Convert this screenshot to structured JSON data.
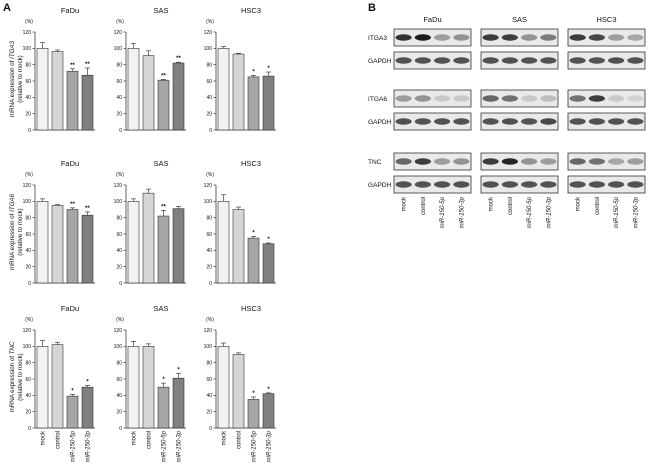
{
  "figure": {
    "panel_a_letter": "A",
    "panel_b_letter": "B",
    "percent_label": "(%)"
  },
  "chart_data": [
    {
      "type": "bar",
      "title": "FaDu",
      "ylabel_line1_prefix": "mRNA expression of ",
      "ylabel_gene": "ITGA3",
      "ylabel_line2": "(relative to mock)",
      "categories": [
        "mock",
        "control",
        "miR-150-5p",
        "miR-150-3p"
      ],
      "values": [
        100,
        96,
        72,
        67
      ],
      "errors": [
        7,
        2,
        3,
        9
      ],
      "significance": [
        "",
        "",
        "**",
        "**"
      ],
      "yticks": [
        0,
        20,
        40,
        60,
        80,
        100,
        120
      ],
      "ylim": [
        0,
        120
      ],
      "colors": [
        "#f2f2f2",
        "#d6d6d6",
        "#a6a6a6",
        "#808080"
      ]
    },
    {
      "type": "bar",
      "title": "SAS",
      "categories": [
        "mock",
        "control",
        "miR-150-5p",
        "miR-150-3p"
      ],
      "values": [
        100,
        91,
        61,
        82
      ],
      "errors": [
        6,
        6,
        1,
        1
      ],
      "significance": [
        "",
        "",
        "**",
        "**"
      ],
      "yticks": [
        0,
        20,
        40,
        60,
        80,
        100,
        120
      ],
      "ylim": [
        0,
        120
      ],
      "colors": [
        "#f2f2f2",
        "#d6d6d6",
        "#a6a6a6",
        "#808080"
      ]
    },
    {
      "type": "bar",
      "title": "HSC3",
      "categories": [
        "mock",
        "control",
        "miR-150-5p",
        "miR-150-3p"
      ],
      "values": [
        100,
        93,
        65,
        66
      ],
      "errors": [
        2,
        1,
        2,
        5
      ],
      "significance": [
        "",
        "",
        "*",
        "*"
      ],
      "yticks": [
        0,
        20,
        40,
        60,
        80,
        100,
        120
      ],
      "ylim": [
        0,
        120
      ],
      "colors": [
        "#f2f2f2",
        "#d6d6d6",
        "#a6a6a6",
        "#808080"
      ]
    },
    {
      "type": "bar",
      "title": "FaDu",
      "ylabel_line1_prefix": "mRNA expression of ",
      "ylabel_gene": "ITGA6",
      "ylabel_line2": "(relative to mock)",
      "categories": [
        "mock",
        "control",
        "miR-150-5p",
        "miR-150-3p"
      ],
      "values": [
        100,
        95,
        90,
        83
      ],
      "errors": [
        3,
        1,
        2,
        4
      ],
      "significance": [
        "",
        "",
        "**",
        "**"
      ],
      "yticks": [
        0,
        20,
        40,
        60,
        80,
        100,
        120
      ],
      "ylim": [
        0,
        120
      ],
      "colors": [
        "#f2f2f2",
        "#d6d6d6",
        "#a6a6a6",
        "#808080"
      ]
    },
    {
      "type": "bar",
      "title": "SAS",
      "categories": [
        "mock",
        "control",
        "miR-150-5p",
        "miR-150-3p"
      ],
      "values": [
        100,
        110,
        82,
        91
      ],
      "errors": [
        3,
        5,
        7,
        3
      ],
      "significance": [
        "",
        "",
        "**",
        ""
      ],
      "yticks": [
        0,
        20,
        40,
        60,
        80,
        100,
        120
      ],
      "ylim": [
        0,
        120
      ],
      "colors": [
        "#f2f2f2",
        "#d6d6d6",
        "#a6a6a6",
        "#808080"
      ]
    },
    {
      "type": "bar",
      "title": "HSC3",
      "categories": [
        "mock",
        "control",
        "miR-150-5p",
        "miR-150-3p"
      ],
      "values": [
        100,
        90,
        55,
        48
      ],
      "errors": [
        8,
        3,
        2,
        1
      ],
      "significance": [
        "",
        "",
        "*",
        "*"
      ],
      "yticks": [
        0,
        20,
        40,
        60,
        80,
        100,
        120
      ],
      "ylim": [
        0,
        120
      ],
      "colors": [
        "#f2f2f2",
        "#d6d6d6",
        "#a6a6a6",
        "#808080"
      ]
    },
    {
      "type": "bar",
      "title": "FaDu",
      "ylabel_line1_prefix": "mRNA expression of ",
      "ylabel_gene": "TNC",
      "ylabel_line2": "(relative to mock)",
      "categories": [
        "mock",
        "control",
        "miR-150-5p",
        "miR-150-3p"
      ],
      "values": [
        100,
        102,
        39,
        50
      ],
      "errors": [
        7,
        3,
        2,
        2
      ],
      "significance": [
        "",
        "",
        "*",
        "*"
      ],
      "yticks": [
        0,
        20,
        40,
        60,
        80,
        100,
        120
      ],
      "ylim": [
        0,
        120
      ],
      "colors": [
        "#f2f2f2",
        "#d6d6d6",
        "#a6a6a6",
        "#808080"
      ]
    },
    {
      "type": "bar",
      "title": "SAS",
      "categories": [
        "mock",
        "control",
        "miR-150-5p",
        "miR-150-3p"
      ],
      "values": [
        100,
        100,
        50,
        61
      ],
      "errors": [
        6,
        3,
        5,
        6
      ],
      "significance": [
        "",
        "",
        "*",
        "*"
      ],
      "yticks": [
        0,
        20,
        40,
        60,
        80,
        100,
        120
      ],
      "ylim": [
        0,
        120
      ],
      "colors": [
        "#f2f2f2",
        "#d6d6d6",
        "#a6a6a6",
        "#808080"
      ]
    },
    {
      "type": "bar",
      "title": "HSC3",
      "categories": [
        "mock",
        "control",
        "miR-150-5p",
        "miR-150-3p"
      ],
      "values": [
        100,
        90,
        35,
        42
      ],
      "errors": [
        4,
        2,
        3,
        1
      ],
      "significance": [
        "",
        "",
        "*",
        "*"
      ],
      "yticks": [
        0,
        20,
        40,
        60,
        80,
        100,
        120
      ],
      "ylim": [
        0,
        120
      ],
      "colors": [
        "#f2f2f2",
        "#d6d6d6",
        "#a6a6a6",
        "#808080"
      ]
    }
  ],
  "blots": {
    "cell_lines": [
      "FaDu",
      "SAS",
      "HSC3"
    ],
    "rows": [
      "ITGA3",
      "GAPDH",
      "ITGA6",
      "GAPDH",
      "TNC",
      "GAPDH"
    ],
    "lanes": [
      "mock",
      "control",
      "miR-150-5p",
      "miR-150-3p"
    ]
  }
}
